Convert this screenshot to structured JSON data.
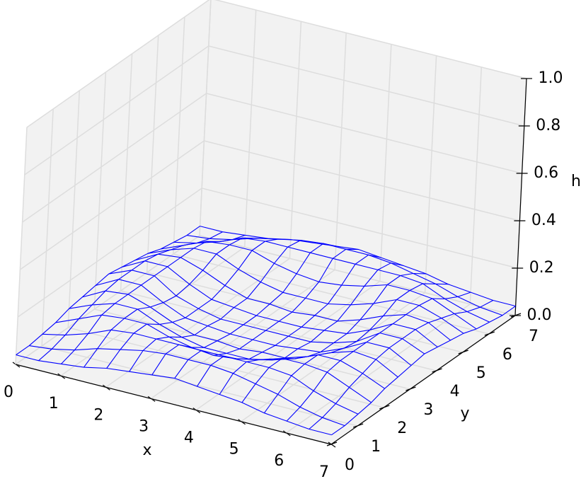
{
  "chart_data": {
    "type": "surface",
    "xlabel": "x",
    "ylabel": "y",
    "zlabel": "h",
    "color": "#0000ff",
    "xlim": [
      0,
      7
    ],
    "ylim": [
      0,
      7
    ],
    "zlim": [
      0,
      1
    ],
    "xticks": [
      0,
      1,
      2,
      3,
      4,
      5,
      6,
      7
    ],
    "yticks": [
      0,
      1,
      2,
      3,
      4,
      5,
      6,
      7
    ],
    "zticks": [
      {
        "value": 0,
        "label": "0.0"
      },
      0.2,
      0.4,
      0.6,
      0.8,
      {
        "value": 1,
        "label": "1.0"
      }
    ],
    "grid": true,
    "x": [
      0,
      0.5,
      1,
      1.5,
      2,
      2.5,
      3,
      3.5,
      4,
      4.5,
      5,
      5.5,
      6,
      6.5,
      7
    ],
    "y": [
      0,
      0.5,
      1,
      1.5,
      2,
      2.5,
      3,
      3.5,
      4,
      4.5,
      5,
      5.5,
      6,
      6.5,
      7
    ],
    "z": [
      [
        0.04,
        0.04,
        0.05,
        0.06,
        0.08,
        0.09,
        0.1,
        0.11,
        0.1,
        0.09,
        0.08,
        0.06,
        0.05,
        0.04,
        0.04
      ],
      [
        0.04,
        0.05,
        0.07,
        0.1,
        0.12,
        0.14,
        0.15,
        0.15,
        0.15,
        0.14,
        0.12,
        0.1,
        0.07,
        0.05,
        0.04
      ],
      [
        0.05,
        0.07,
        0.1,
        0.14,
        0.15,
        0.15,
        0.15,
        0.15,
        0.15,
        0.15,
        0.15,
        0.14,
        0.1,
        0.07,
        0.05
      ],
      [
        0.06,
        0.1,
        0.14,
        0.15,
        0.15,
        0.12,
        0.1,
        0.09,
        0.1,
        0.12,
        0.15,
        0.15,
        0.14,
        0.1,
        0.06
      ],
      [
        0.08,
        0.12,
        0.15,
        0.15,
        0.11,
        0.08,
        0.06,
        0.06,
        0.06,
        0.08,
        0.11,
        0.15,
        0.15,
        0.12,
        0.08
      ],
      [
        0.09,
        0.14,
        0.15,
        0.12,
        0.08,
        0.05,
        0.05,
        0.04,
        0.05,
        0.05,
        0.08,
        0.12,
        0.15,
        0.14,
        0.09
      ],
      [
        0.1,
        0.15,
        0.15,
        0.1,
        0.06,
        0.05,
        0.04,
        0.04,
        0.04,
        0.05,
        0.06,
        0.1,
        0.15,
        0.15,
        0.1
      ],
      [
        0.11,
        0.15,
        0.15,
        0.09,
        0.06,
        0.04,
        0.04,
        0.04,
        0.04,
        0.04,
        0.06,
        0.09,
        0.15,
        0.15,
        0.11
      ],
      [
        0.1,
        0.15,
        0.15,
        0.1,
        0.06,
        0.05,
        0.04,
        0.04,
        0.04,
        0.05,
        0.06,
        0.1,
        0.15,
        0.15,
        0.1
      ],
      [
        0.09,
        0.14,
        0.15,
        0.12,
        0.08,
        0.05,
        0.05,
        0.04,
        0.05,
        0.05,
        0.08,
        0.12,
        0.15,
        0.14,
        0.09
      ],
      [
        0.08,
        0.12,
        0.15,
        0.15,
        0.11,
        0.08,
        0.06,
        0.06,
        0.06,
        0.08,
        0.11,
        0.15,
        0.15,
        0.12,
        0.08
      ],
      [
        0.06,
        0.1,
        0.14,
        0.15,
        0.15,
        0.12,
        0.1,
        0.09,
        0.1,
        0.12,
        0.15,
        0.15,
        0.14,
        0.1,
        0.06
      ],
      [
        0.05,
        0.07,
        0.1,
        0.14,
        0.15,
        0.15,
        0.15,
        0.15,
        0.15,
        0.15,
        0.15,
        0.14,
        0.1,
        0.07,
        0.05
      ],
      [
        0.04,
        0.05,
        0.07,
        0.1,
        0.12,
        0.14,
        0.15,
        0.15,
        0.15,
        0.14,
        0.12,
        0.1,
        0.07,
        0.05,
        0.04
      ],
      [
        0.04,
        0.04,
        0.05,
        0.06,
        0.08,
        0.09,
        0.1,
        0.11,
        0.1,
        0.09,
        0.08,
        0.06,
        0.05,
        0.04,
        0.04
      ]
    ]
  }
}
